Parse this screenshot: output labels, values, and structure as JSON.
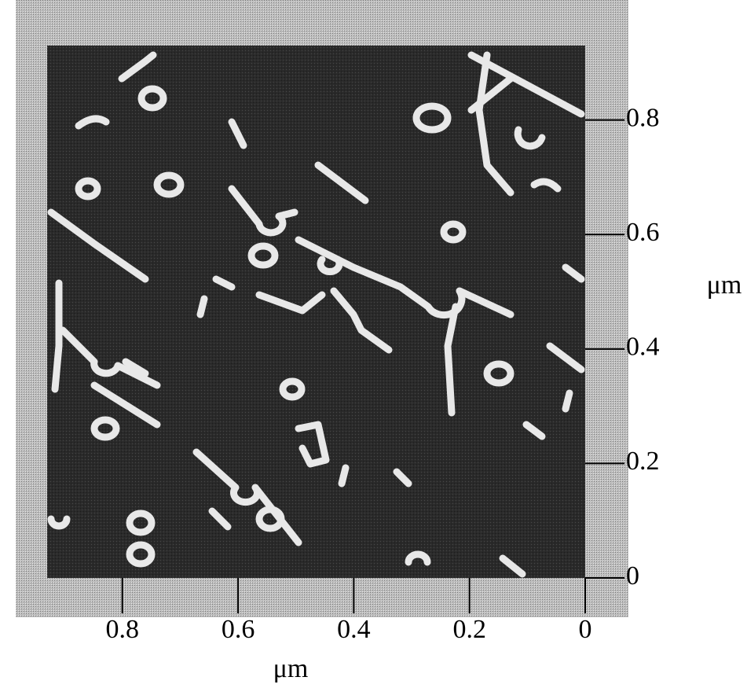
{
  "chart_data": {
    "type": "image",
    "x_label": "μm",
    "y_label": "μm",
    "xlim": [
      0.93,
      0
    ],
    "ylim": [
      0,
      0.93
    ],
    "xticks": [
      0.8,
      0.6,
      0.4,
      0.2,
      0
    ],
    "yticks": [
      0,
      0.2,
      0.4,
      0.6,
      0.8
    ]
  }
}
